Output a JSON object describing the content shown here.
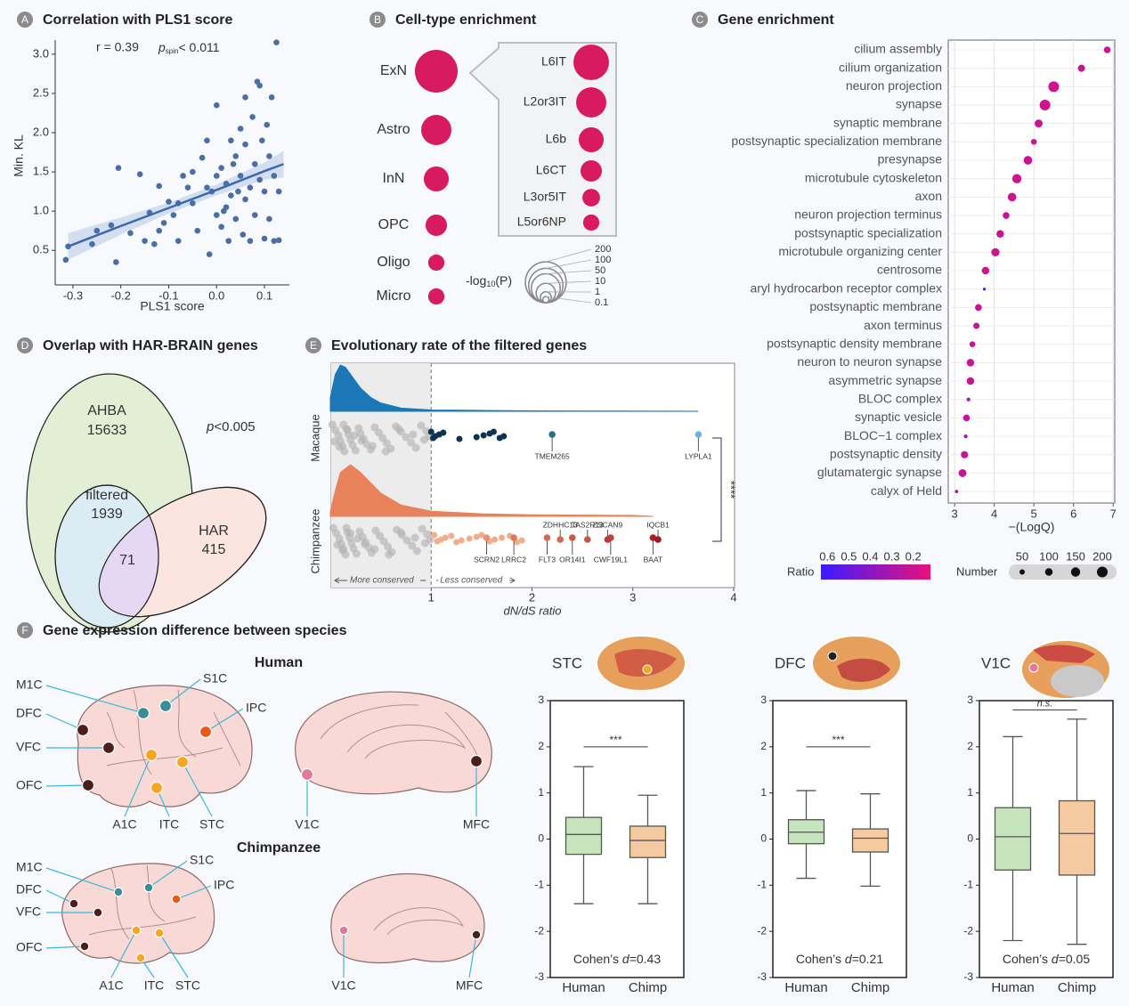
{
  "chart_data": [
    {
      "type": "scatter",
      "label": "A",
      "title": "Correlation with PLS1 score",
      "xlabel": "PLS1 score",
      "ylabel": "Min. KL",
      "color": "#4a6fa5",
      "x": [
        -0.31,
        -0.315,
        -0.25,
        -0.26,
        -0.22,
        -0.21,
        -0.205,
        -0.18,
        -0.16,
        -0.15,
        -0.14,
        -0.13,
        -0.12,
        -0.11,
        -0.1,
        -0.09,
        -0.08,
        -0.07,
        -0.06,
        -0.05,
        -0.04,
        -0.03,
        -0.02,
        -0.015,
        -0.01,
        0.0,
        0.0,
        0.01,
        0.01,
        0.02,
        0.02,
        0.025,
        0.03,
        0.03,
        0.04,
        0.04,
        0.05,
        0.05,
        0.055,
        0.06,
        0.06,
        0.07,
        0.07,
        0.075,
        0.08,
        0.08,
        0.085,
        0.09,
        0.09,
        0.095,
        0.1,
        0.1,
        0.105,
        0.11,
        0.11,
        0.115,
        0.12,
        0.12,
        0.125,
        0.13,
        0.13,
        -0.05,
        -0.02,
        0.0,
        0.06,
        -0.08,
        0.035,
        -0.12,
        0.015,
        0.045
      ],
      "y": [
        0.55,
        0.38,
        0.75,
        0.58,
        0.82,
        0.35,
        1.55,
        0.72,
        1.47,
        0.62,
        0.98,
        0.58,
        0.75,
        0.85,
        1.12,
        0.95,
        0.62,
        1.45,
        1.3,
        1.1,
        0.75,
        1.68,
        1.9,
        0.45,
        1.25,
        2.35,
        0.95,
        1.55,
        0.8,
        1.35,
        1.05,
        0.62,
        1.9,
        1.2,
        0.9,
        1.7,
        1.45,
        2.05,
        0.7,
        2.45,
        1.15,
        1.3,
        0.62,
        2.2,
        1.6,
        0.95,
        2.65,
        2.6,
        1.4,
        1.9,
        1.25,
        0.65,
        2.1,
        1.7,
        0.9,
        2.45,
        1.45,
        0.62,
        3.15,
        1.25,
        0.63,
        1.5,
        1.3,
        1.45,
        1.85,
        1.1,
        1.6,
        1.32,
        1.0,
        1.25
      ],
      "fit": {
        "x": [
          -0.31,
          -0.2,
          -0.1,
          0,
          0.1,
          0.14
        ],
        "y": [
          0.55,
          0.81,
          1.04,
          1.27,
          1.51,
          1.6
        ],
        "lower": [
          0.38,
          0.7,
          0.97,
          1.2,
          1.4,
          1.43
        ],
        "upper": [
          0.72,
          0.92,
          1.11,
          1.34,
          1.62,
          1.77
        ]
      },
      "stat": {
        "r": "r = 0.39",
        "p": "p",
        "p_sub": "spin",
        "p_rest": "< 0.011"
      },
      "xlim": [
        -0.337,
        0.152
      ],
      "ylim": [
        0.06,
        3.18
      ],
      "xticks": [
        -0.3,
        -0.2,
        -0.1,
        {
          "value": 0,
          "label": "0.0"
        },
        0.1
      ],
      "yticks": [
        0.5,
        {
          "value": 1,
          "label": "1.0"
        },
        1.5,
        {
          "value": 2,
          "label": "2.0"
        },
        2.5,
        {
          "value": 3,
          "label": "3.0"
        }
      ]
    },
    {
      "type": "bubble",
      "label": "B",
      "title": "Cell-type enrichment",
      "color": "#d81b60",
      "categories": [
        "ExN",
        "Astro",
        "InN",
        "OPC",
        "Oligo",
        "Micro"
      ],
      "values": [
        240,
        60,
        28,
        15,
        5,
        5
      ],
      "subtypes": {
        "categories": [
          "L6IT",
          "L2or3IT",
          "L6b",
          "L6CT",
          "L3or5IT",
          "L5or6NP"
        ],
        "values": [
          115,
          60,
          28,
          15,
          7,
          5
        ]
      },
      "size_legend": {
        "title": [
          "-log",
          "10",
          "(P)"
        ],
        "values": [
          200,
          100,
          50,
          10,
          1,
          0.1
        ]
      }
    },
    {
      "type": "dot",
      "label": "C",
      "title": "Gene enrichment",
      "xlabel": "−(LogQ)",
      "categories": [
        "cilium assembly",
        "cilium organization",
        "neuron projection",
        "synapse",
        "synaptic membrane",
        "postsynaptic specialization membrane",
        "presynapse",
        "microtubule cytoskeleton",
        "axon",
        "neuron projection terminus",
        "postsynaptic specialization",
        "microtubule organizing center",
        "centrosome",
        "aryl hydrocarbon receptor complex",
        "postsynaptic membrane",
        "axon terminus",
        "postsynaptic density membrane",
        "neuron to neuron synapse",
        "asymmetric synapse",
        "BLOC complex",
        "synaptic vesicle",
        "BLOC−1 complex",
        "postsynaptic density",
        "glutamatergic synapse",
        "calyx of Held"
      ],
      "values": [
        6.85,
        6.2,
        5.5,
        5.28,
        5.12,
        5.0,
        4.85,
        4.57,
        4.45,
        4.3,
        4.15,
        4.03,
        3.78,
        3.75,
        3.6,
        3.55,
        3.45,
        3.4,
        3.4,
        3.35,
        3.3,
        3.28,
        3.25,
        3.2,
        3.05
      ],
      "ratio": [
        0.2,
        0.22,
        0.2,
        0.2,
        0.22,
        0.22,
        0.21,
        0.2,
        0.2,
        0.22,
        0.21,
        0.2,
        0.21,
        0.58,
        0.22,
        0.22,
        0.22,
        0.21,
        0.21,
        0.3,
        0.22,
        0.28,
        0.22,
        0.21,
        0.25
      ],
      "number": [
        80,
        90,
        200,
        200,
        110,
        60,
        130,
        150,
        130,
        80,
        100,
        120,
        100,
        15,
        80,
        70,
        60,
        100,
        100,
        25,
        80,
        25,
        90,
        110,
        20
      ],
      "xlim": [
        2.84,
        7.04
      ],
      "xticks": [
        3,
        4,
        5,
        6,
        7
      ],
      "grid": true,
      "color_legend": {
        "title": "Ratio",
        "lim": [
          0.63,
          0.12
        ],
        "ticks": [
          0.6,
          0.5,
          0.4,
          0.3,
          0.2
        ],
        "colors": [
          "#3a1cff",
          "#e8127a"
        ]
      },
      "size_legend": {
        "title": "Number",
        "values": [
          50,
          100,
          150,
          200
        ]
      }
    },
    {
      "type": "venn",
      "label": "D",
      "title": "Overlap with HAR-BRAIN genes",
      "sets": [
        {
          "name": "AHBA",
          "value": "15633",
          "color": "#e3efd4"
        },
        {
          "name": "filtered",
          "value": "1939",
          "color": "#dcecf4"
        },
        {
          "name": "HAR",
          "value": "415",
          "color": "#fde5df"
        }
      ],
      "overlap": "71",
      "overlap_color": "#e6d7f4",
      "annotation": {
        "p": "p",
        "rest": "<0.005"
      }
    },
    {
      "type": "strip_density",
      "label": "E",
      "title": "Evolutionary rate of the filtered genes",
      "xlabel": "dN/dS ratio",
      "xlim": [
        0,
        4
      ],
      "xticks": [
        1,
        2,
        3,
        4
      ],
      "threshold": 1,
      "left_note": "More conserved",
      "right_note": "Less conserved",
      "significance": "****",
      "series": [
        {
          "name": "Macaque",
          "color": "#1b77b6",
          "point_color": "#0e3352",
          "density": {
            "x": [
              0,
              0.05,
              0.1,
              0.15,
              0.2,
              0.3,
              0.4,
              0.5,
              0.7,
              1.0,
              1.5,
              2,
              3,
              3.65
            ],
            "y": [
              0.3,
              0.8,
              1,
              0.95,
              0.8,
              0.5,
              0.3,
              0.18,
              0.07,
              0.03,
              0.02,
              0.01,
              0.005,
              0
            ]
          },
          "background": [
            0.02,
            0.05,
            0.08,
            0.1,
            0.12,
            0.14,
            0.16,
            0.18,
            0.2,
            0.22,
            0.25,
            0.28,
            0.3,
            0.33,
            0.36,
            0.4,
            0.44,
            0.48,
            0.52,
            0.56,
            0.6,
            0.65,
            0.7,
            0.75,
            0.8,
            0.85,
            0.9,
            0.95,
            0.98,
            0.04,
            0.09,
            0.13,
            0.17,
            0.24,
            0.31,
            0.42,
            0.55,
            0.68,
            0.82,
            0.93
          ],
          "points": [
            1.0,
            1.02,
            1.04,
            1.08,
            1.12,
            1.28,
            1.45,
            1.52,
            1.58,
            1.62,
            1.68,
            1.72
          ],
          "labels_below": [
            {
              "label": "TMEM265",
              "value": 2.2,
              "color": "#2a6f86"
            },
            {
              "label": "LYPLA1",
              "value": 3.65,
              "color": "#6ab4e8"
            }
          ],
          "labels_above": []
        },
        {
          "name": "Chimpanzee",
          "color": "#e8825a",
          "point_color": "#f2ad8a",
          "density": {
            "x": [
              0,
              0.05,
              0.1,
              0.2,
              0.3,
              0.4,
              0.5,
              0.7,
              1.0,
              1.5,
              2,
              3,
              3.2
            ],
            "y": [
              0.1,
              0.5,
              0.85,
              1,
              0.85,
              0.65,
              0.45,
              0.22,
              0.1,
              0.05,
              0.03,
              0.02,
              0
            ]
          },
          "background": [
            0.03,
            0.06,
            0.09,
            0.11,
            0.13,
            0.15,
            0.17,
            0.19,
            0.21,
            0.23,
            0.26,
            0.29,
            0.32,
            0.35,
            0.38,
            0.41,
            0.45,
            0.49,
            0.53,
            0.57,
            0.61,
            0.66,
            0.71,
            0.76,
            0.81,
            0.86,
            0.91,
            0.96,
            0.99,
            0.07,
            0.12,
            0.16,
            0.2,
            0.27,
            0.34,
            0.44,
            0.58,
            0.7,
            0.84,
            0.94
          ],
          "points": [
            1.03,
            1.06,
            1.1,
            1.14,
            1.2,
            1.25,
            1.3,
            1.38,
            1.45,
            1.5,
            1.58,
            1.63,
            1.7,
            1.78,
            1.85,
            1.9
          ],
          "labels_below": [
            {
              "label": "SCRN2",
              "value": 1.55,
              "color": "#e89070"
            },
            {
              "label": "LRRC2",
              "value": 1.82,
              "color": "#e07a5c"
            },
            {
              "label": "FLT3",
              "value": 2.15,
              "color": "#d86a50"
            },
            {
              "label": "OR14I1",
              "value": 2.4,
              "color": "#cf5a48"
            },
            {
              "label": "CWF19L1",
              "value": 2.78,
              "color": "#c24040"
            },
            {
              "label": "BAAT",
              "value": 3.2,
              "color": "#a8202a"
            }
          ],
          "labels_above": [
            {
              "label": "ZDHHC13",
              "value": 2.28,
              "color": "#d46850"
            },
            {
              "label": "TAS2R13",
              "value": 2.55,
              "color": "#c85548"
            },
            {
              "label": "ZSCAN9",
              "value": 2.75,
              "color": "#b83a3c"
            },
            {
              "label": "IQCB1",
              "value": 3.25,
              "color": "#9c1c26"
            }
          ]
        }
      ]
    },
    {
      "type": "box",
      "title": "STC",
      "categories": [
        "Human",
        "Chimp"
      ],
      "colors": [
        "#c6e4bd",
        "#f6caa0"
      ],
      "series": [
        {
          "min": -1.4,
          "q1": -0.33,
          "median": 0.1,
          "q3": 0.47,
          "max": 1.57
        },
        {
          "min": -1.4,
          "q1": -0.4,
          "median": -0.03,
          "q3": 0.28,
          "max": 0.95
        }
      ],
      "ylim": [
        -3,
        3
      ],
      "yticks": [
        -3,
        -2,
        -1,
        0,
        1,
        2,
        3
      ],
      "significance": "***",
      "effect": [
        "Cohen’s ",
        "d",
        "=0.43"
      ]
    },
    {
      "type": "box",
      "title": "DFC",
      "categories": [
        "Human",
        "Chimp"
      ],
      "colors": [
        "#c6e4bd",
        "#f6caa0"
      ],
      "series": [
        {
          "min": -0.85,
          "q1": -0.1,
          "median": 0.15,
          "q3": 0.42,
          "max": 1.05
        },
        {
          "min": -1.02,
          "q1": -0.28,
          "median": 0.02,
          "q3": 0.22,
          "max": 0.98
        }
      ],
      "ylim": [
        -3,
        3
      ],
      "yticks": [
        -3,
        -2,
        -1,
        0,
        1,
        2,
        3
      ],
      "significance": "***",
      "effect": [
        "Cohen’s ",
        "d",
        "=0.21"
      ]
    },
    {
      "type": "box",
      "title": "V1C",
      "categories": [
        "Human",
        "Chimp"
      ],
      "colors": [
        "#c6e4bd",
        "#f6caa0"
      ],
      "series": [
        {
          "min": -2.2,
          "q1": -0.67,
          "median": 0.05,
          "q3": 0.68,
          "max": 2.22
        },
        {
          "min": -2.28,
          "q1": -0.78,
          "median": 0.12,
          "q3": 0.83,
          "max": 2.6
        }
      ],
      "ylim": [
        -3,
        3
      ],
      "yticks": [
        -3,
        -2,
        -1,
        0,
        1,
        2,
        3
      ],
      "significance": "n.s.",
      "effect": [
        "Cohen’s ",
        "d",
        "=0.05"
      ]
    }
  ],
  "brain_map": {
    "label": "F",
    "title": "Gene expression difference between species",
    "human": "Human",
    "chimp": "Chimpanzee",
    "regions": [
      {
        "name": "M1C",
        "color": "#3a8d99"
      },
      {
        "name": "S1C",
        "color": "#3a8d99"
      },
      {
        "name": "IPC",
        "color": "#e85a1a"
      },
      {
        "name": "DFC",
        "color": "#4a1f1c"
      },
      {
        "name": "VFC",
        "color": "#4a1f1c"
      },
      {
        "name": "OFC",
        "color": "#4a1f1c"
      },
      {
        "name": "A1C",
        "color": "#f5a623"
      },
      {
        "name": "ITC",
        "color": "#f5a623"
      },
      {
        "name": "STC",
        "color": "#f5a623"
      },
      {
        "name": "V1C",
        "color": "#e07a9a"
      },
      {
        "name": "MFC",
        "color": "#4a1f1c"
      }
    ]
  }
}
